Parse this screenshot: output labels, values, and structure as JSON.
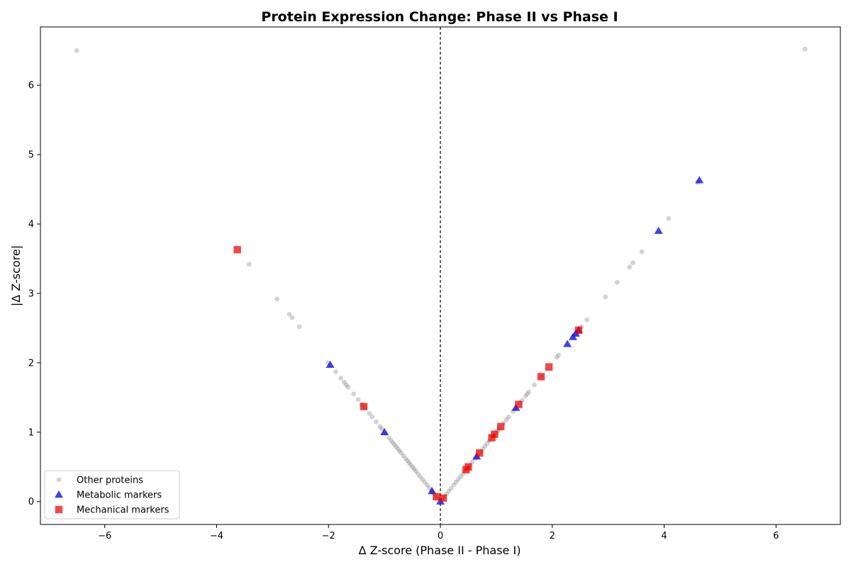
{
  "chart_data": {
    "type": "scatter",
    "title": "Protein Expression Change: Phase II vs Phase I",
    "xlabel": "Δ Z-score (Phase II - Phase I)",
    "ylabel": "|Δ Z-score|",
    "xlim": [
      -7.15,
      7.15
    ],
    "ylim": [
      -0.33,
      6.84
    ],
    "xticks": [
      -6,
      -4,
      -2,
      0,
      2,
      4,
      6
    ],
    "yticks": [
      0,
      1,
      2,
      3,
      4,
      5,
      6
    ],
    "reference_line": {
      "x": 0,
      "style": "dashed",
      "color": "#000000"
    },
    "grid": false,
    "legend_position": "lower-left",
    "series": [
      {
        "name": "Other proteins",
        "marker": "circle",
        "color": "#808080",
        "opacity": 0.35,
        "points": [
          [
            -6.5,
            6.5
          ],
          [
            -3.42,
            3.42
          ],
          [
            -2.92,
            2.92
          ],
          [
            -2.7,
            2.7
          ],
          [
            -2.65,
            2.65
          ],
          [
            -2.52,
            2.52
          ],
          [
            -2.0,
            2.0
          ],
          [
            -1.87,
            1.87
          ],
          [
            -1.78,
            1.78
          ],
          [
            -1.72,
            1.72
          ],
          [
            -1.68,
            1.68
          ],
          [
            -1.65,
            1.65
          ],
          [
            -1.55,
            1.55
          ],
          [
            -1.47,
            1.47
          ],
          [
            -1.4,
            1.4
          ],
          [
            -1.35,
            1.35
          ],
          [
            -1.27,
            1.27
          ],
          [
            -1.22,
            1.22
          ],
          [
            -1.15,
            1.15
          ],
          [
            -1.08,
            1.08
          ],
          [
            -1.05,
            1.05
          ],
          [
            -0.98,
            0.98
          ],
          [
            -0.92,
            0.92
          ],
          [
            -0.88,
            0.88
          ],
          [
            -0.85,
            0.85
          ],
          [
            -0.82,
            0.82
          ],
          [
            -0.79,
            0.79
          ],
          [
            -0.76,
            0.76
          ],
          [
            -0.73,
            0.73
          ],
          [
            -0.7,
            0.7
          ],
          [
            -0.66,
            0.66
          ],
          [
            -0.62,
            0.62
          ],
          [
            -0.59,
            0.59
          ],
          [
            -0.56,
            0.56
          ],
          [
            -0.53,
            0.53
          ],
          [
            -0.5,
            0.5
          ],
          [
            -0.47,
            0.47
          ],
          [
            -0.44,
            0.44
          ],
          [
            -0.4,
            0.4
          ],
          [
            -0.36,
            0.36
          ],
          [
            -0.32,
            0.32
          ],
          [
            -0.28,
            0.28
          ],
          [
            -0.24,
            0.24
          ],
          [
            -0.2,
            0.2
          ],
          [
            -0.16,
            0.16
          ],
          [
            -0.12,
            0.12
          ],
          [
            -0.08,
            0.08
          ],
          [
            -0.04,
            0.04
          ],
          [
            0.03,
            0.03
          ],
          [
            0.07,
            0.07
          ],
          [
            0.11,
            0.11
          ],
          [
            0.15,
            0.15
          ],
          [
            0.19,
            0.19
          ],
          [
            0.24,
            0.24
          ],
          [
            0.28,
            0.28
          ],
          [
            0.32,
            0.32
          ],
          [
            0.36,
            0.36
          ],
          [
            0.4,
            0.4
          ],
          [
            0.44,
            0.44
          ],
          [
            0.52,
            0.52
          ],
          [
            0.57,
            0.57
          ],
          [
            0.62,
            0.62
          ],
          [
            0.66,
            0.66
          ],
          [
            0.72,
            0.72
          ],
          [
            0.76,
            0.76
          ],
          [
            0.8,
            0.8
          ],
          [
            0.84,
            0.84
          ],
          [
            0.88,
            0.88
          ],
          [
            0.93,
            0.93
          ],
          [
            0.98,
            0.98
          ],
          [
            1.02,
            1.02
          ],
          [
            1.06,
            1.06
          ],
          [
            1.13,
            1.13
          ],
          [
            1.18,
            1.18
          ],
          [
            1.22,
            1.22
          ],
          [
            1.3,
            1.3
          ],
          [
            1.35,
            1.35
          ],
          [
            1.42,
            1.42
          ],
          [
            1.46,
            1.46
          ],
          [
            1.52,
            1.52
          ],
          [
            1.55,
            1.55
          ],
          [
            1.58,
            1.58
          ],
          [
            1.68,
            1.68
          ],
          [
            1.8,
            1.8
          ],
          [
            2.08,
            2.08
          ],
          [
            2.11,
            2.11
          ],
          [
            2.43,
            2.43
          ],
          [
            2.52,
            2.52
          ],
          [
            2.62,
            2.62
          ],
          [
            2.95,
            2.95
          ],
          [
            3.16,
            3.16
          ],
          [
            3.38,
            3.38
          ],
          [
            3.44,
            3.44
          ],
          [
            3.6,
            3.6
          ],
          [
            4.08,
            4.08
          ],
          [
            4.6,
            4.6
          ],
          [
            6.52,
            6.52
          ]
        ]
      },
      {
        "name": "Metabolic markers",
        "marker": "triangle",
        "color": "#0000dd",
        "opacity": 0.75,
        "points": [
          [
            -1.97,
            1.97
          ],
          [
            -1.0,
            1.0
          ],
          [
            -0.15,
            0.15
          ],
          [
            0.0,
            0.0
          ],
          [
            0.65,
            0.65
          ],
          [
            1.35,
            1.35
          ],
          [
            2.27,
            2.27
          ],
          [
            2.37,
            2.37
          ],
          [
            2.42,
            2.42
          ],
          [
            2.47,
            2.47
          ],
          [
            3.9,
            3.9
          ],
          [
            4.63,
            4.63
          ]
        ]
      },
      {
        "name": "Mechanical markers",
        "marker": "square",
        "color": "#ee0000",
        "opacity": 0.72,
        "points": [
          [
            -3.63,
            3.63
          ],
          [
            -1.37,
            1.37
          ],
          [
            -0.07,
            0.07
          ],
          [
            0.05,
            0.05
          ],
          [
            0.46,
            0.46
          ],
          [
            0.5,
            0.5
          ],
          [
            0.7,
            0.7
          ],
          [
            0.92,
            0.92
          ],
          [
            0.97,
            0.97
          ],
          [
            1.08,
            1.08
          ],
          [
            1.4,
            1.4
          ],
          [
            1.8,
            1.8
          ],
          [
            1.94,
            1.94
          ],
          [
            2.47,
            2.47
          ]
        ]
      }
    ]
  }
}
